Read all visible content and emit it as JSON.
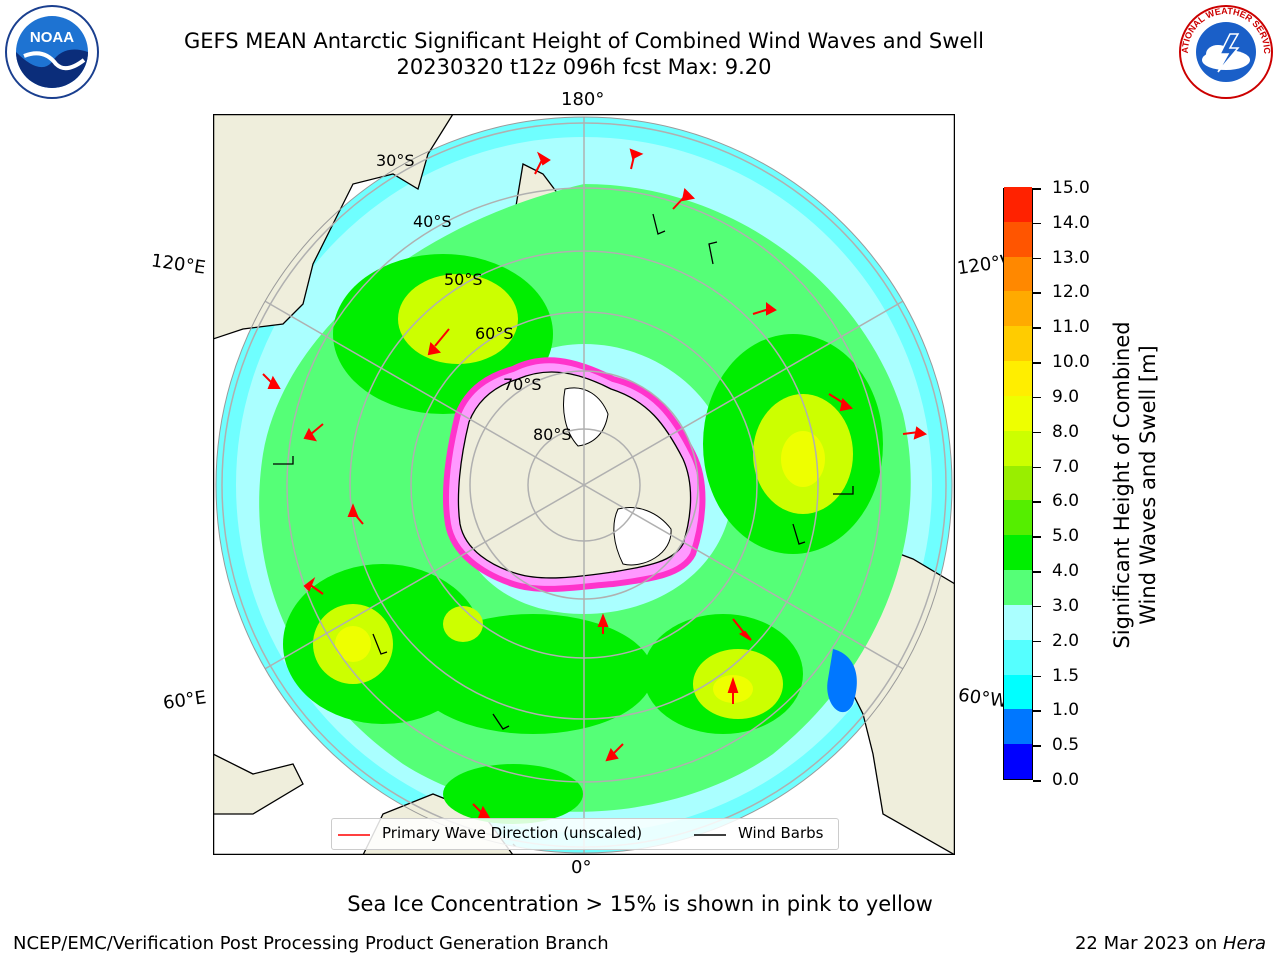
{
  "header": {
    "title_line1": "GEFS MEAN Antarctic Significant Height of Combined Wind Waves and Swell",
    "title_line2": "20230320 t12z 096h fcst   Max: 9.20"
  },
  "logos": {
    "noaa": {
      "text": "NOAA"
    },
    "nws": {
      "text": "NATIONAL WEATHER SERVICE"
    }
  },
  "map": {
    "longitude_labels": {
      "top": "180°",
      "bottom": "0°",
      "upper_left": "120°E",
      "upper_right": "120°W",
      "lower_left": "60°E",
      "lower_right": "60°W"
    },
    "latitude_labels": [
      "30°S",
      "40°S",
      "50°S",
      "60°S",
      "70°S",
      "80°S"
    ],
    "colors": {
      "ocean_low": "#aaffff",
      "land": "#efeedc",
      "wave_3": "#55ff77",
      "wave_4": "#00ee00",
      "wave_6": "#ccff00",
      "ice_edge": "#ff33cc",
      "arrow": "#ff0000"
    }
  },
  "legend": {
    "primary_wave": "Primary Wave Direction (unscaled)",
    "wind_barbs": "Wind Barbs"
  },
  "colorbar": {
    "label_line1": "Significant Height of Combined",
    "label_line2": "Wind Waves and Swell [m]",
    "ticks": [
      "15.0",
      "14.0",
      "13.0",
      "12.0",
      "11.0",
      "10.0",
      "9.0",
      "8.0",
      "7.0",
      "6.0",
      "5.0",
      "4.0",
      "3.0",
      "2.0",
      "1.5",
      "1.0",
      "0.5",
      "0.0"
    ],
    "colors": [
      "#0000ff",
      "#0077ff",
      "#00ffff",
      "#55ffff",
      "#aaffff",
      "#55ff77",
      "#00ee00",
      "#55ee00",
      "#99ee00",
      "#ccff00",
      "#eeff00",
      "#ffee00",
      "#ffcc00",
      "#ffaa00",
      "#ff8800",
      "#ff5500",
      "#ff2200"
    ]
  },
  "footer": {
    "sea_ice_note": "Sea Ice Concentration > 15% is shown in pink to yellow",
    "branch": "NCEP/EMC/Verification Post Processing Product Generation Branch",
    "date_prefix": "22 Mar 2023 on ",
    "date_host": "Hera"
  }
}
